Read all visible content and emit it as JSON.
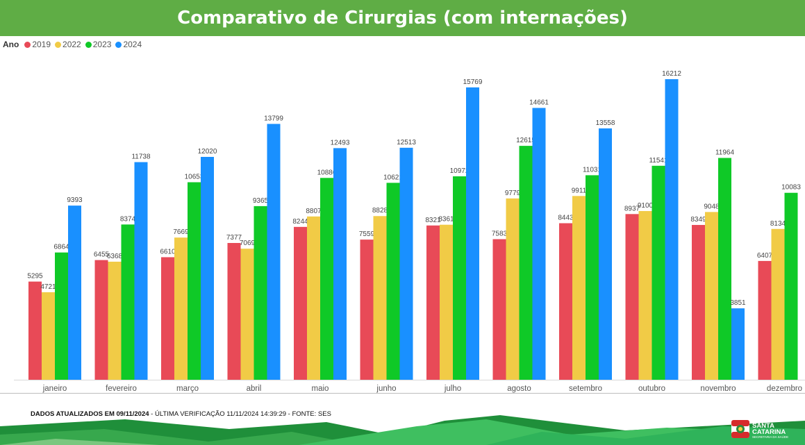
{
  "header": {
    "title": "Comparativo de Cirurgias (com internações)"
  },
  "legend": {
    "title": "Ano",
    "items": [
      {
        "label": "2019",
        "color": "#e84a57"
      },
      {
        "label": "2022",
        "color": "#f1cb46"
      },
      {
        "label": "2023",
        "color": "#0fc927"
      },
      {
        "label": "2024",
        "color": "#1990ff"
      }
    ]
  },
  "chart_data": {
    "type": "bar",
    "categories": [
      "janeiro",
      "fevereiro",
      "março",
      "abril",
      "maio",
      "junho",
      "julho",
      "agosto",
      "setembro",
      "outubro",
      "novembro",
      "dezembro"
    ],
    "series": [
      {
        "name": "2019",
        "color": "#e84a57",
        "values": [
          5295,
          6455,
          6610,
          7377,
          8244,
          7559,
          8321,
          7583,
          8443,
          8937,
          8349,
          6407
        ]
      },
      {
        "name": "2022",
        "color": "#f1cb46",
        "values": [
          4721,
          6368,
          7669,
          7069,
          8807,
          8828,
          8361,
          9779,
          9911,
          9100,
          9048,
          8134
        ]
      },
      {
        "name": "2023",
        "color": "#0fc927",
        "values": [
          6864,
          8374,
          10653,
          9365,
          10886,
          10621,
          10972,
          12615,
          11031,
          11541,
          11964,
          10083
        ]
      },
      {
        "name": "2024",
        "color": "#1990ff",
        "values": [
          9393,
          11738,
          12020,
          13799,
          12493,
          12513,
          15769,
          14661,
          13558,
          16212,
          3851,
          null
        ]
      }
    ],
    "ylim": [
      0,
      17000
    ],
    "grid": false,
    "legend_position": "top-left"
  },
  "footer": {
    "updated": "DADOS ATUALIZADOS EM 09/11/2024",
    "verification": " - ÚLTIMA VERIFICAÇÃO 11/11/2024 14:39:29 - FONTE: SES"
  },
  "logo": {
    "line1": "GOVERNO DE",
    "line2": "SANTA",
    "line3": "CATARINA",
    "line4": "SECRETARIA DA SAÚDE"
  }
}
